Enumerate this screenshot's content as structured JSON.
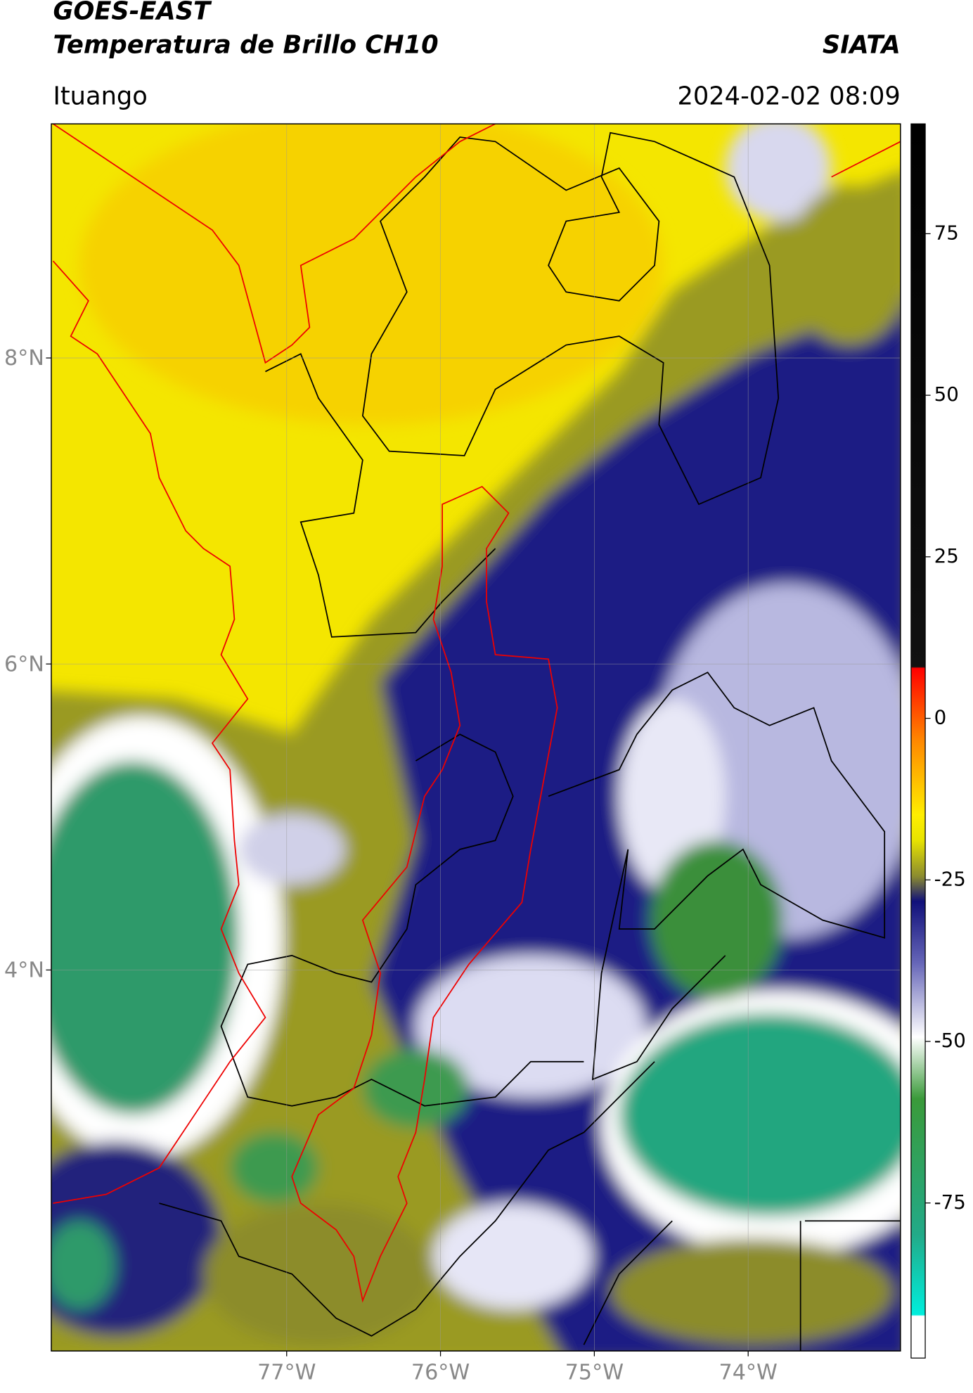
{
  "header": {
    "title": "GOES-EAST",
    "subtitle": "Temperatura de Brillo CH10",
    "brand": "SIATA",
    "place": "Ituango",
    "datetime": "2024-02-02 08:09"
  },
  "map": {
    "lonlim": [
      -78.53,
      -73.01
    ],
    "latlim": [
      1.51,
      9.53
    ],
    "lonticks": [
      {
        "value": -77,
        "label": "77°W"
      },
      {
        "value": -76,
        "label": "76°W"
      },
      {
        "value": -75,
        "label": "75°W"
      },
      {
        "value": -74,
        "label": "74°W"
      }
    ],
    "latticks": [
      {
        "value": 8,
        "label": "8°N"
      },
      {
        "value": 6,
        "label": "6°N"
      },
      {
        "value": 4,
        "label": "4°N"
      }
    ]
  },
  "colorbar": {
    "lim": [
      -99,
      92
    ],
    "ticks": [
      75,
      50,
      25,
      0,
      -25,
      -50,
      -75
    ]
  }
}
